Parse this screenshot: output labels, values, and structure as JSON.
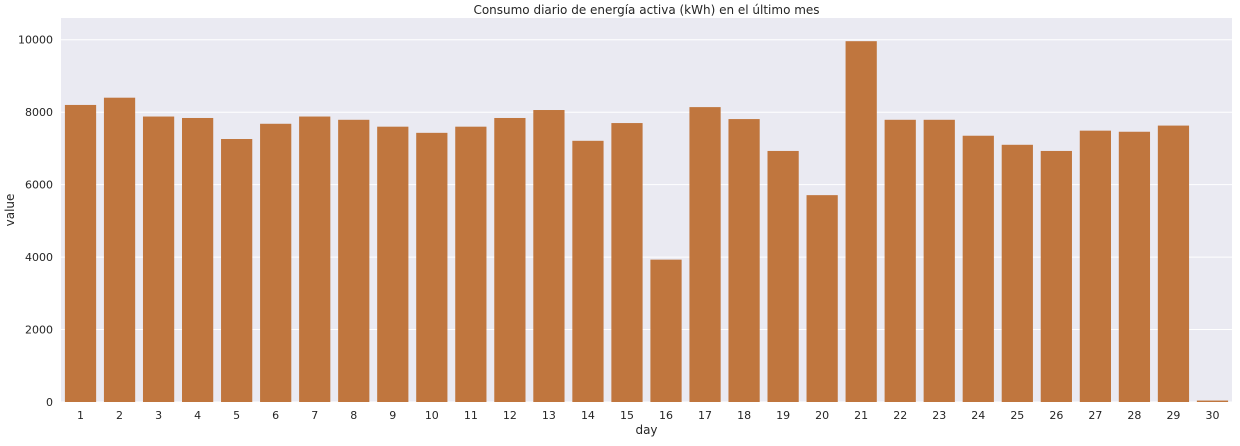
{
  "chart_data": {
    "type": "bar",
    "title": "Consumo diario de energía activa (kWh) en el último mes",
    "xlabel": "day",
    "ylabel": "value",
    "categories": [
      "1",
      "2",
      "3",
      "4",
      "5",
      "6",
      "7",
      "8",
      "9",
      "10",
      "11",
      "12",
      "13",
      "14",
      "15",
      "16",
      "17",
      "18",
      "19",
      "20",
      "21",
      "22",
      "23",
      "24",
      "25",
      "26",
      "27",
      "28",
      "29",
      "30"
    ],
    "values": [
      8200,
      8400,
      7880,
      7840,
      7260,
      7680,
      7880,
      7790,
      7600,
      7430,
      7600,
      7840,
      8060,
      7210,
      7700,
      3930,
      8140,
      7810,
      6930,
      5710,
      9960,
      7790,
      7790,
      7350,
      7100,
      6930,
      7490,
      7460,
      7630,
      40
    ],
    "yticks": [
      0,
      2000,
      4000,
      6000,
      8000,
      10000
    ],
    "ylim": [
      0,
      10600
    ],
    "grid": true,
    "bar_color": "#c0763e",
    "background_color": "#eaeaf2",
    "grid_color": "#ffffff"
  }
}
